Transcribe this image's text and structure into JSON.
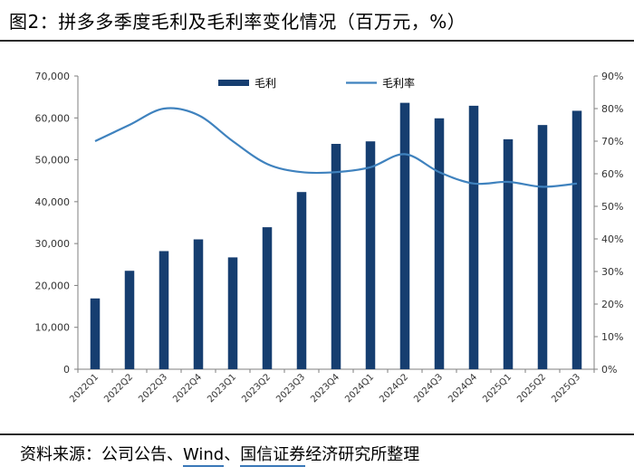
{
  "title": "图2：拼多多季度毛利及毛利率变化情况（百万元，%）",
  "source": {
    "prefix": "资料来源：公司公告、",
    "wind": "Wind",
    "sep": "、",
    "org": "国信证券",
    "suffix": "经济研究所整理"
  },
  "colors": {
    "bar": "#163e70",
    "line": "#3f82be",
    "axis": "#7f7f7f"
  },
  "chart_data": {
    "type": "bar",
    "categories": [
      "2022Q1",
      "2022Q2",
      "2022Q3",
      "2022Q4",
      "2023Q1",
      "2023Q2",
      "2023Q3",
      "2023Q4",
      "2024Q1",
      "2024Q2",
      "2024Q3",
      "2024Q4",
      "2025Q1",
      "2025Q2",
      "2025Q3"
    ],
    "series": [
      {
        "name": "毛利",
        "type": "bar",
        "axis": "left",
        "values": [
          16900,
          23500,
          28200,
          31000,
          26700,
          33900,
          42300,
          53800,
          54400,
          63600,
          59900,
          62900,
          54900,
          58300,
          61700
        ]
      },
      {
        "name": "毛利率",
        "type": "line",
        "axis": "right",
        "unit": "%",
        "values": [
          70,
          75,
          80,
          78,
          70,
          63,
          60.5,
          60.5,
          62,
          66,
          60.5,
          57,
          57.5,
          56,
          57
        ]
      }
    ],
    "ylim": [
      0,
      70000
    ],
    "yticks": [
      "0",
      "10,000",
      "20,000",
      "30,000",
      "40,000",
      "50,000",
      "60,000",
      "70,000"
    ],
    "y2lim": [
      0,
      90
    ],
    "y2ticks": [
      "0%",
      "10%",
      "20%",
      "30%",
      "40%",
      "50%",
      "60%",
      "70%",
      "80%",
      "90%"
    ],
    "legend": "top",
    "grid": false
  }
}
